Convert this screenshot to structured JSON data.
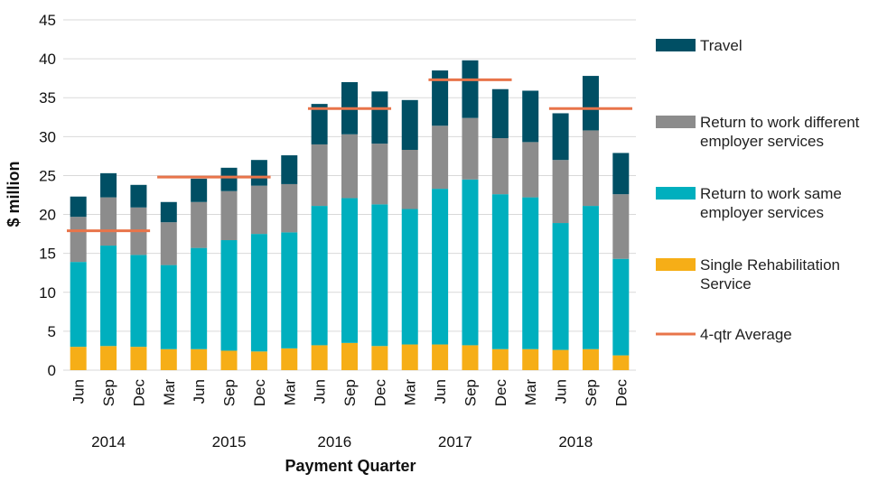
{
  "chart_data": {
    "type": "bar",
    "stacked": true,
    "categories": [
      "Jun",
      "Sep",
      "Dec",
      "Mar",
      "Jun",
      "Sep",
      "Dec",
      "Mar",
      "Jun",
      "Sep",
      "Dec",
      "Mar",
      "Jun",
      "Sep",
      "Dec",
      "Mar",
      "Jun",
      "Sep",
      "Dec"
    ],
    "year_labels": [
      {
        "label": "2014",
        "start": 0,
        "end": 2
      },
      {
        "label": "2015",
        "start": 4,
        "end": 6
      },
      {
        "label": "2016",
        "start": 7,
        "end": 10
      },
      {
        "label": "2017",
        "start": 11,
        "end": 14
      },
      {
        "label": "2018",
        "start": 15,
        "end": 18
      }
    ],
    "series": [
      {
        "name": "Single Rehabilitation Service",
        "color": "#F6AE17",
        "values": [
          3.0,
          3.1,
          3.0,
          2.7,
          2.7,
          2.5,
          2.4,
          2.8,
          3.2,
          3.5,
          3.1,
          3.3,
          3.3,
          3.2,
          2.7,
          2.7,
          2.6,
          2.7,
          1.9
        ]
      },
      {
        "name": "Return to work same employer services",
        "color": "#00AFBE",
        "values": [
          10.9,
          12.9,
          11.8,
          10.8,
          13.0,
          14.2,
          15.1,
          14.9,
          17.9,
          18.6,
          18.2,
          17.4,
          20.0,
          21.3,
          19.9,
          19.5,
          16.3,
          18.4,
          12.4
        ]
      },
      {
        "name": "Return to work different employer services",
        "color": "#8C8C8C",
        "values": [
          5.8,
          6.2,
          6.1,
          5.5,
          5.9,
          6.3,
          6.2,
          6.2,
          7.9,
          8.2,
          7.8,
          7.6,
          8.1,
          7.9,
          7.2,
          7.1,
          8.1,
          9.7,
          8.3
        ]
      },
      {
        "name": "Travel",
        "color": "#004F64",
        "values": [
          2.6,
          3.1,
          2.9,
          2.6,
          3.0,
          3.0,
          3.3,
          3.7,
          5.2,
          6.7,
          6.7,
          6.4,
          7.1,
          7.4,
          6.3,
          6.6,
          6.0,
          7.0,
          5.3
        ]
      }
    ],
    "averages": {
      "name": "4-qtr Average",
      "color": "#E8744A",
      "segments": [
        {
          "start": 0,
          "end": 2,
          "value": 17.9
        },
        {
          "start": 3,
          "end": 6,
          "value": 24.8
        },
        {
          "start": 8,
          "end": 10,
          "value": 33.6
        },
        {
          "start": 12,
          "end": 14,
          "value": 37.3
        },
        {
          "start": 16,
          "end": 18,
          "value": 33.6
        }
      ]
    },
    "legend_order": [
      {
        "label_lines": [
          "Travel"
        ],
        "color": "#004F64",
        "kind": "box"
      },
      {
        "label_lines": [
          "Return to work different",
          "employer services"
        ],
        "color": "#8C8C8C",
        "kind": "box"
      },
      {
        "label_lines": [
          "Return to work same",
          "employer services"
        ],
        "color": "#00AFBE",
        "kind": "box"
      },
      {
        "label_lines": [
          "Single Rehabilitation",
          "Service"
        ],
        "color": "#F6AE17",
        "kind": "box"
      },
      {
        "label_lines": [
          "4-qtr Average"
        ],
        "color": "#E8744A",
        "kind": "line"
      }
    ],
    "legend_placement": "right",
    "xlabel": "Payment Quarter",
    "ylabel": "$ million",
    "ylim": [
      0,
      45
    ],
    "yticks": [
      0,
      5,
      10,
      15,
      20,
      25,
      30,
      35,
      40,
      45
    ],
    "grid": true
  }
}
